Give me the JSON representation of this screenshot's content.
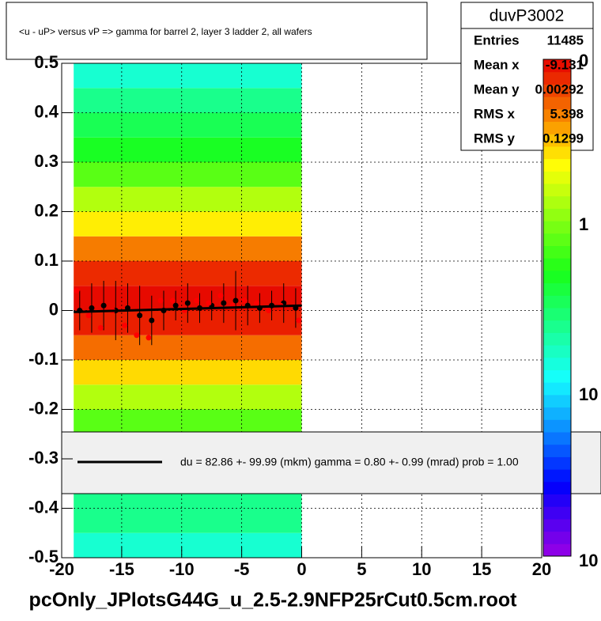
{
  "chart_data": {
    "type": "histogram2d",
    "title": "<u - uP>       versus   vP =>  gamma for barrel 2, layer 3 ladder 2, all wafers",
    "xlabel": "pcOnly_JPlotsG44G_u_2.5-2.9NFP25rCut0.5cm.root",
    "stats": {
      "name": "duvP3002",
      "rows": [
        [
          "Entries",
          "11485"
        ],
        [
          "Mean x",
          "-9.131"
        ],
        [
          "Mean y",
          "0.00292"
        ],
        [
          "RMS x",
          "5.398"
        ],
        [
          "RMS y",
          "0.1299"
        ]
      ]
    },
    "fit_label": "du =    82.86 +-  99.99 (mkm) gamma =    0.80 +-  0.99 (mrad) prob = 1.00",
    "xlim": [
      -20,
      20
    ],
    "xticks": [
      -20,
      -15,
      -10,
      -5,
      0,
      5,
      10,
      15,
      20
    ],
    "ylim": [
      -0.5,
      0.5
    ],
    "yticks": [
      -0.5,
      -0.4,
      -0.3,
      -0.2,
      -0.1,
      0,
      0.1,
      0.2,
      0.3,
      0.4,
      0.5
    ],
    "grid": true,
    "zlim": [
      0.1,
      3.2
    ],
    "zlabels": [
      "0",
      "1",
      "10",
      "10"
    ],
    "density": {
      "xbins": [
        -19,
        0
      ],
      "ybins": [
        -0.5,
        -0.45,
        -0.4,
        -0.35,
        -0.3,
        -0.25,
        -0.2,
        -0.15,
        -0.1,
        -0.05,
        0,
        0.05,
        0.1,
        0.15,
        0.2,
        0.25,
        0.3,
        0.35,
        0.4,
        0.45,
        0.5
      ],
      "values": [
        0.4,
        0.5,
        0.5,
        0.6,
        0.7,
        0.9,
        1.2,
        1.7,
        2.3,
        2.9,
        3.1,
        2.8,
        2.2,
        1.6,
        1.2,
        0.9,
        0.7,
        0.6,
        0.5,
        0.4
      ]
    },
    "series": [
      {
        "name": "profile",
        "color": "#000000",
        "x": [
          -18.5,
          -17.5,
          -16.5,
          -15.5,
          -14.5,
          -13.5,
          -12.5,
          -11.5,
          -10.5,
          -9.5,
          -8.5,
          -7.5,
          -6.5,
          -5.5,
          -4.5,
          -3.5,
          -2.5,
          -1.5,
          -0.5
        ],
        "values": [
          0.0,
          0.005,
          0.01,
          0.0,
          0.005,
          -0.01,
          -0.02,
          0.0,
          0.01,
          0.015,
          0.005,
          0.01,
          0.015,
          0.02,
          0.01,
          0.005,
          0.01,
          0.015,
          0.005
        ],
        "errors": [
          0.04,
          0.05,
          0.05,
          0.06,
          0.05,
          0.06,
          0.05,
          0.04,
          0.03,
          0.04,
          0.03,
          0.03,
          0.04,
          0.06,
          0.04,
          0.03,
          0.03,
          0.04,
          0.04
        ]
      },
      {
        "name": "means",
        "color": "#ff0000",
        "x": [
          -18.75,
          -17.75,
          -16.75,
          -15.75,
          -14.75,
          -13.75,
          -12.75,
          -11.75,
          -10.75,
          -9.75,
          -8.75,
          -7.75,
          -6.75,
          -5.75,
          -4.75,
          -3.75,
          -2.75,
          -1.75,
          -0.25
        ],
        "values": [
          0.04,
          -0.01,
          -0.035,
          0.0,
          -0.03,
          -0.05,
          -0.055,
          0.02,
          0.02,
          0.0,
          0.02,
          0.015,
          0.03,
          0.01,
          0.02,
          0.015,
          0.0,
          0.01,
          -0.02
        ]
      }
    ],
    "fit": {
      "x": [
        -19,
        0
      ],
      "y": [
        -0.003,
        0.01
      ]
    }
  }
}
